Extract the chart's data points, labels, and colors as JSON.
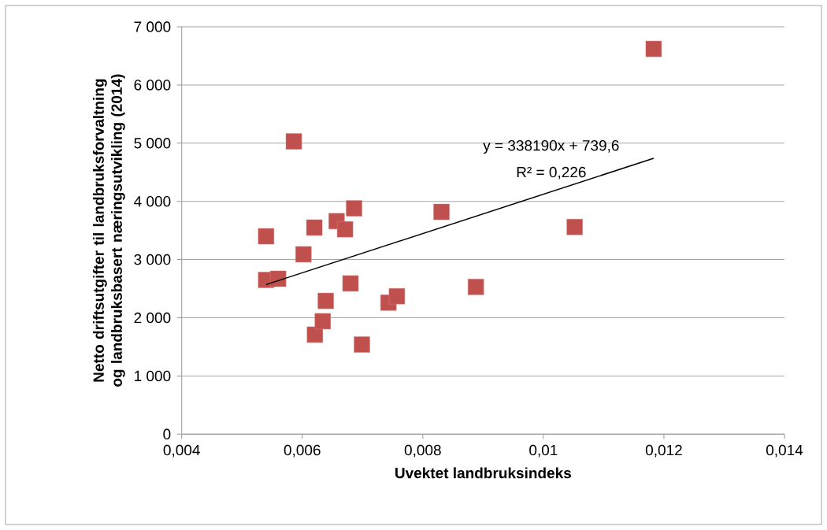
{
  "chart_data": {
    "type": "scatter",
    "xlabel": "Uvektet landbruksindeks",
    "ylabel": "Netto driftsutgifter til landbruksforvaltning og landbruksbasert næringsutvikling (2014)",
    "xlim": [
      0.004,
      0.014
    ],
    "ylim": [
      0,
      7000
    ],
    "xticks": [
      {
        "value": 0.004,
        "label": "0,004"
      },
      {
        "value": 0.006,
        "label": "0,006"
      },
      {
        "value": 0.008,
        "label": "0,008"
      },
      {
        "value": 0.01,
        "label": "0,01"
      },
      {
        "value": 0.012,
        "label": "0,012"
      },
      {
        "value": 0.014,
        "label": "0,014"
      }
    ],
    "yticks": [
      0,
      {
        "value": 1000,
        "label": "1 000"
      },
      {
        "value": 2000,
        "label": "2 000"
      },
      {
        "value": 3000,
        "label": "3 000"
      },
      {
        "value": 4000,
        "label": "4 000"
      },
      {
        "value": 5000,
        "label": "5 000"
      },
      {
        "value": 6000,
        "label": "6 000"
      },
      {
        "value": 7000,
        "label": "7 000"
      }
    ],
    "grid": "y",
    "marker": "square",
    "series": [
      {
        "color": "#c0504d",
        "x": [
          0.0054,
          0.0054,
          0.0056,
          0.00586,
          0.00602,
          0.0062,
          0.00621,
          0.00634,
          0.00639,
          0.00657,
          0.00671,
          0.0068,
          0.00686,
          0.00699,
          0.00743,
          0.00757,
          0.00831,
          0.00888,
          0.01052,
          0.01183
        ],
        "values": [
          3400,
          2650,
          2670,
          5030,
          3090,
          3550,
          1710,
          1940,
          2290,
          3660,
          3520,
          2590,
          3880,
          1540,
          2260,
          2370,
          3820,
          2530,
          3560,
          6620
        ]
      },
      {
        "type": "line",
        "color": "#000000",
        "marker": "none",
        "x": [
          0.0054,
          0.01183
        ],
        "values": [
          2570,
          4740
        ]
      }
    ],
    "annotations": [
      "y = 338190x + 739,6",
      "R² = 0,226"
    ]
  }
}
